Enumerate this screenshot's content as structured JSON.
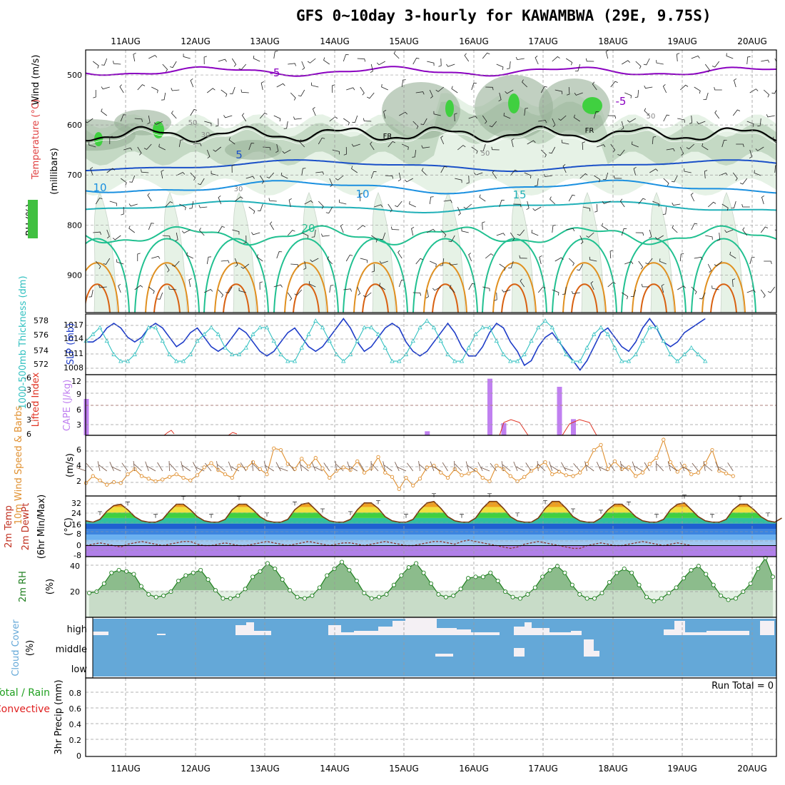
{
  "title": "GFS 0~10day 3-hourly for KAWAMBWA (29E, 9.75S)",
  "dates": [
    "11AUG",
    "12AUG",
    "13AUG",
    "14AUG",
    "15AUG",
    "16AUG",
    "17AUG",
    "18AUG",
    "19AUG",
    "20AUG"
  ],
  "colors": {
    "background": "#ffffff",
    "temp_minus5": "#8a00c0",
    "temp_5": "#1a50c8",
    "temp_10": "#1a90e0",
    "temp_15": "#20b0b8",
    "temp_20": "#20c090",
    "temp_warm": "#e09020",
    "freezing": "#000000",
    "rh_light": "#e6f2e6",
    "rh_mid": "#b8d0b8",
    "rh_dark": "#98b098",
    "rh_green": "#40d040",
    "slp": "#1e3cc8",
    "thickness": "#30c0c0",
    "cape": "#c080f0",
    "lifted_index": "#e03020",
    "wind": "#e09030",
    "barbs": "#705040",
    "rh2m": "#208020",
    "cloud": "#64a8d8",
    "cloud_gap": "#f4f0f4",
    "precip_label": "#20a020",
    "convective_label": "#e02020"
  },
  "panels": {
    "upper": {
      "ylabel": "(millibars)",
      "legend_wind": "Wind (m/s)",
      "legend_temperature": "Temperature (°C)",
      "legend_rh": "RH (%)",
      "yticks": [
        "500",
        "600",
        "700",
        "800",
        "900"
      ],
      "contour_labels": [
        "-5",
        "-5",
        "5",
        "10",
        "10",
        "15",
        "20",
        "FR",
        "FR",
        "50",
        "30",
        "50",
        "30",
        "50"
      ]
    },
    "slp": {
      "label_thickness": "1000-500mb Thickness (dm)",
      "label_slp": "SLP (mb)",
      "thickness_ticks": [
        "578",
        "576",
        "574",
        "572"
      ],
      "slp_ticks": [
        "1017",
        "1014",
        "1011",
        "1008"
      ]
    },
    "cape": {
      "label_li": "Lifted Index",
      "label_cape": "CAPE (J/kg)",
      "li_ticks": [
        "-6",
        "-3",
        "0",
        "3",
        "6"
      ],
      "cape_ticks": [
        "12",
        "9",
        "6",
        "3"
      ]
    },
    "wind": {
      "label": "10m Wind Speed & Barbs",
      "unit": "(m/s)",
      "yticks": [
        "6",
        "4",
        "2"
      ]
    },
    "temp": {
      "label_temp": "2m Temp",
      "label_dew": "2m DewPt",
      "label_minmax": "(6hr Min/Max)",
      "unit": "(°C)",
      "yticks": [
        "32",
        "24",
        "16",
        "8",
        "0",
        "-8"
      ]
    },
    "rh": {
      "label": "2m RH",
      "unit": "(%)",
      "yticks": [
        "40",
        "20"
      ]
    },
    "cloud": {
      "label": "Cloud Cover",
      "unit": "(%)",
      "levels": [
        "high",
        "middle",
        "low"
      ]
    },
    "precip": {
      "label": "3hr Precip (mm)",
      "label_total": "Total / Rain",
      "label_conv": "Convective",
      "run_total": "Run Total = 0",
      "yticks": [
        "0.8",
        "0.6",
        "0.4",
        "0.2",
        "0"
      ]
    }
  },
  "chart_data": [
    {
      "type": "line",
      "name": "SLP (mb)",
      "x_unit": "3-hour steps from 10AUG 12Z",
      "y": [
        1013,
        1013,
        1014,
        1016,
        1017,
        1016,
        1014,
        1013,
        1014,
        1016,
        1017,
        1016,
        1014,
        1012,
        1013,
        1015,
        1016,
        1014,
        1012,
        1011,
        1012,
        1014,
        1016,
        1015,
        1013,
        1011,
        1010,
        1011,
        1013,
        1015,
        1016,
        1014,
        1012,
        1011,
        1012,
        1014,
        1016,
        1018,
        1016,
        1013,
        1011,
        1012,
        1014,
        1016,
        1017,
        1016,
        1013,
        1011,
        1010,
        1011,
        1013,
        1015,
        1017,
        1015,
        1012,
        1010,
        1010,
        1012,
        1015,
        1017,
        1016,
        1013,
        1011,
        1008,
        1009,
        1012,
        1014,
        1015,
        1013,
        1011,
        1009,
        1007,
        1009,
        1012,
        1015,
        1016,
        1014,
        1012,
        1011,
        1013,
        1016,
        1018,
        1016,
        1013,
        1012,
        1013,
        1015,
        1016,
        1017,
        1018
      ],
      "ylim": [
        1006,
        1019
      ]
    },
    {
      "type": "line",
      "name": "1000-500mb Thickness (dm)",
      "y": [
        575,
        576,
        577,
        575,
        573,
        572,
        572,
        573,
        575,
        577,
        577,
        575,
        573,
        572,
        572,
        573,
        575,
        576,
        577,
        576,
        574,
        573,
        573,
        574,
        576,
        577,
        577,
        575,
        573,
        572,
        572,
        574,
        576,
        578,
        577,
        575,
        573,
        572,
        573,
        575,
        577,
        577,
        576,
        574,
        572,
        572,
        573,
        575,
        577,
        578,
        577,
        575,
        573,
        572,
        572,
        574,
        576,
        577,
        577,
        575,
        573,
        572,
        572,
        573,
        575,
        577,
        578,
        577,
        575,
        573,
        572,
        572,
        574,
        576,
        577,
        576,
        574,
        572,
        572,
        573,
        575,
        577,
        577,
        575,
        573,
        572,
        573,
        574,
        573,
        572
      ],
      "ylim": [
        570,
        579
      ]
    },
    {
      "type": "bar",
      "name": "CAPE (J/kg)",
      "x": [
        0,
        49,
        58,
        60,
        68,
        70
      ],
      "values": [
        9,
        1,
        14,
        3,
        12,
        4
      ],
      "ylim": [
        0,
        15
      ]
    },
    {
      "type": "line",
      "name": "10m Wind Speed (m/s)",
      "y": [
        2,
        2.8,
        2.3,
        1.8,
        2.1,
        2,
        3,
        3.6,
        2.8,
        2.5,
        2.2,
        2.4,
        2.7,
        3,
        2.6,
        2.3,
        2.9,
        3.8,
        4.3,
        3.5,
        3,
        2.6,
        4,
        3.7,
        4.4,
        3.6,
        3,
        6,
        5.8,
        4.2,
        3.6,
        4.8,
        3.9,
        4.9,
        3.7,
        2.6,
        3.4,
        3.8,
        3.5,
        4.5,
        3.2,
        3.7,
        5,
        3.2,
        2.7,
        1.3,
        2.6,
        1.7,
        2.5,
        3.8,
        4,
        3.2,
        2.6,
        3.6,
        2.9,
        3.1,
        3.5,
        2.6,
        2.2,
        4,
        3.6,
        2.8,
        2.2,
        2.7,
        3.4,
        3.9,
        4.4,
        3,
        3.3,
        2.9,
        2.8,
        3.2,
        4.2,
        5.8,
        6.4,
        3.6,
        4.5,
        3.6,
        3.8,
        2.8,
        3.2,
        4.2,
        4.9,
        7,
        4.4,
        3.3,
        4,
        3,
        3.2,
        4.3,
        5.8,
        3.4,
        3.1,
        2.8
      ],
      "ylim": [
        0.5,
        7.5
      ]
    },
    {
      "type": "area",
      "name": "2m Temp (°C)",
      "y": [
        18,
        17,
        19,
        25,
        29,
        30,
        26,
        21,
        18,
        17,
        17,
        19,
        25,
        30,
        30,
        26,
        21,
        18,
        17,
        17,
        19,
        26,
        30,
        30,
        26,
        21,
        18,
        17,
        17,
        19,
        26,
        30,
        31,
        26,
        21,
        18,
        17,
        17,
        19,
        26,
        31,
        31,
        27,
        21,
        18,
        17,
        17,
        19,
        26,
        31,
        32,
        27,
        21,
        18,
        17,
        17,
        20,
        27,
        32,
        32,
        27,
        21,
        18,
        17,
        17,
        20,
        27,
        32,
        32,
        27,
        21,
        18,
        17,
        17,
        20,
        26,
        30,
        30,
        26,
        21,
        18,
        17,
        17,
        19,
        26,
        30,
        31,
        26,
        21,
        18,
        17,
        17,
        19,
        26,
        30,
        30,
        26,
        21,
        18,
        17,
        20
      ],
      "ylim": [
        -8,
        36
      ]
    },
    {
      "type": "line",
      "name": "2m DewPt (°C)",
      "y": [
        0,
        1,
        2,
        1,
        0,
        -1,
        1,
        2,
        3,
        2,
        1,
        0,
        1,
        2,
        3,
        3,
        1,
        0,
        0,
        1,
        2,
        1,
        0,
        0,
        1,
        2,
        3,
        2,
        1,
        0,
        1,
        2,
        3,
        2,
        1,
        0,
        1,
        2,
        2,
        1,
        0,
        1,
        2,
        3,
        2,
        1,
        0,
        0,
        1,
        2,
        3,
        3,
        2,
        1,
        3,
        4,
        3,
        2,
        1,
        0,
        -1,
        -2,
        -1,
        1,
        2,
        3,
        2,
        1,
        0,
        -1,
        -2,
        -2,
        0,
        1,
        2,
        1,
        0,
        0,
        1,
        2,
        3,
        2,
        1,
        0,
        1,
        2,
        1,
        0
      ],
      "ylim": [
        -8,
        36
      ]
    },
    {
      "type": "area",
      "name": "2m RH (%)",
      "y": [
        18,
        19,
        25,
        33,
        35,
        34,
        32,
        23,
        17,
        15,
        16,
        19,
        27,
        31,
        33,
        35,
        28,
        20,
        14,
        14,
        16,
        21,
        30,
        34,
        40,
        36,
        28,
        20,
        15,
        14,
        16,
        22,
        31,
        36,
        41,
        35,
        27,
        18,
        14,
        15,
        17,
        24,
        31,
        37,
        40,
        33,
        25,
        17,
        15,
        16,
        21,
        29,
        30,
        30,
        33,
        27,
        19,
        15,
        14,
        17,
        22,
        30,
        35,
        38,
        33,
        24,
        17,
        14,
        14,
        18,
        26,
        33,
        36,
        33,
        24,
        15,
        12,
        14,
        18,
        22,
        29,
        35,
        38,
        32,
        24,
        16,
        13,
        14,
        19,
        25,
        36,
        44,
        30
      ],
      "ylim": [
        0,
        45
      ]
    },
    {
      "type": "bar",
      "name": "3hr Precip (mm)",
      "values": [],
      "ylim": [
        0,
        0.9
      ]
    }
  ]
}
